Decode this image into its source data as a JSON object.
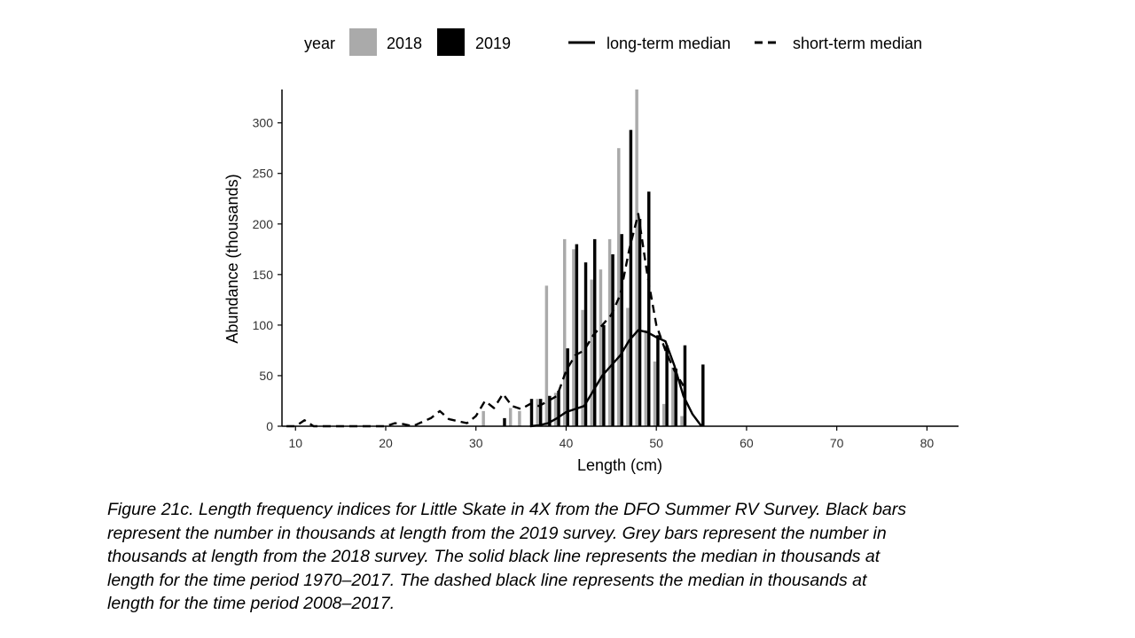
{
  "chart_data": {
    "type": "bar",
    "xlabel": "Length (cm)",
    "ylabel": "Abundance (thousands)",
    "xlim": [
      8.5,
      83.5
    ],
    "ylim": [
      0,
      333
    ],
    "x_ticks": [
      10,
      20,
      30,
      40,
      50,
      60,
      70,
      80
    ],
    "y_ticks": [
      0,
      50,
      100,
      150,
      200,
      250,
      300
    ],
    "grid": false,
    "legend": {
      "position": "top",
      "title": "year",
      "entries": [
        {
          "label": "2018",
          "color": "#aaaaaa",
          "kind": "bar"
        },
        {
          "label": "2019",
          "color": "#000000",
          "kind": "bar"
        },
        {
          "label": "long-term median",
          "kind": "solid-line"
        },
        {
          "label": "short-term median",
          "kind": "dashed-line"
        }
      ]
    },
    "bar_series": [
      {
        "name": "2018",
        "color": "#aaaaaa",
        "x": [
          31,
          34,
          35,
          37,
          38,
          39,
          40,
          41,
          42,
          43,
          44,
          45,
          46,
          47,
          48,
          49,
          50,
          51,
          52,
          53
        ],
        "values": [
          15,
          18,
          15,
          27,
          139,
          33,
          185,
          175,
          115,
          145,
          155,
          185,
          275,
          117,
          335,
          95,
          64,
          22,
          58,
          10
        ]
      },
      {
        "name": "2019",
        "color": "#000000",
        "x": [
          33,
          36,
          37,
          38,
          39,
          40,
          41,
          42,
          43,
          44,
          45,
          46,
          47,
          48,
          49,
          50,
          51,
          52,
          53,
          55
        ],
        "values": [
          8,
          27,
          27,
          30,
          35,
          77,
          180,
          162,
          185,
          100,
          170,
          190,
          293,
          205,
          232,
          90,
          80,
          57,
          80,
          61
        ]
      }
    ],
    "line_series": [
      {
        "name": "long-term median",
        "style": "solid",
        "x": [
          36,
          37,
          38,
          39,
          40,
          41,
          42,
          43,
          44,
          45,
          46,
          47,
          48,
          49,
          50,
          51,
          52,
          53,
          54,
          55
        ],
        "values": [
          0,
          1,
          3,
          8,
          14,
          17,
          20,
          35,
          50,
          60,
          70,
          85,
          95,
          93,
          88,
          84,
          60,
          30,
          12,
          0
        ]
      },
      {
        "name": "short-term median",
        "style": "dashed",
        "x": [
          9,
          10,
          11,
          12,
          20,
          21,
          22,
          23,
          24,
          25,
          26,
          27,
          28,
          29,
          30,
          31,
          32,
          33,
          34,
          35,
          36,
          37,
          38,
          39,
          40,
          41,
          42,
          43,
          44,
          45,
          46,
          47,
          48,
          49,
          50,
          51,
          52,
          53
        ],
        "values": [
          0,
          0,
          6,
          0,
          0,
          3,
          2,
          0,
          4,
          8,
          15,
          7,
          5,
          3,
          10,
          25,
          18,
          32,
          20,
          17,
          22,
          20,
          25,
          30,
          55,
          70,
          75,
          90,
          100,
          110,
          130,
          175,
          210,
          150,
          100,
          75,
          55,
          40
        ]
      }
    ]
  },
  "caption": {
    "lines": [
      "Figure 21c. Length frequency indices for Little Skate in 4X from the DFO Summer RV Survey. Black bars",
      "represent the number in thousands at length from the 2019 survey. Grey bars represent the number in",
      "thousands at length from the 2018 survey. The solid black line represents the median in thousands at",
      "length for the time period 1970–2017. The dashed black line represents the median in thousands at",
      "length for the time period 2008–2017."
    ]
  }
}
